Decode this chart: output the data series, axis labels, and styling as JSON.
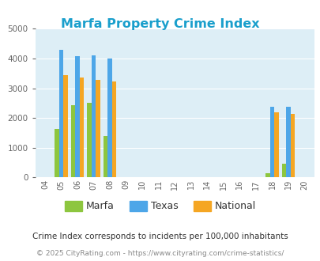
{
  "title": "Marfa Property Crime Index",
  "title_color": "#1a9fcc",
  "years": [
    "04",
    "05",
    "06",
    "07",
    "08",
    "09",
    "10",
    "11",
    "12",
    "13",
    "14",
    "15",
    "16",
    "17",
    "18",
    "19",
    "20"
  ],
  "year_indices": [
    0,
    1,
    2,
    3,
    4,
    5,
    6,
    7,
    8,
    9,
    10,
    11,
    12,
    13,
    14,
    15,
    16
  ],
  "marfa": [
    null,
    1625,
    2430,
    2500,
    1380,
    null,
    null,
    null,
    null,
    null,
    null,
    null,
    null,
    null,
    155,
    460,
    null
  ],
  "texas": [
    null,
    4300,
    4070,
    4100,
    3990,
    null,
    null,
    null,
    null,
    null,
    null,
    null,
    null,
    null,
    2380,
    2380,
    null
  ],
  "national": [
    null,
    3450,
    3350,
    3270,
    3220,
    null,
    null,
    null,
    null,
    null,
    null,
    null,
    null,
    null,
    2200,
    2130,
    null
  ],
  "marfa_color": "#8dc63f",
  "texas_color": "#4da6e8",
  "national_color": "#f5a623",
  "bg_color": "#ddeef6",
  "grid_color": "#ffffff",
  "ylim": [
    0,
    5000
  ],
  "yticks": [
    0,
    1000,
    2000,
    3000,
    4000,
    5000
  ],
  "bar_width": 0.27,
  "footnote1": "Crime Index corresponds to incidents per 100,000 inhabitants",
  "footnote2": "© 2025 CityRating.com - https://www.cityrating.com/crime-statistics/",
  "footnote1_color": "#333333",
  "footnote2_color": "#888888"
}
